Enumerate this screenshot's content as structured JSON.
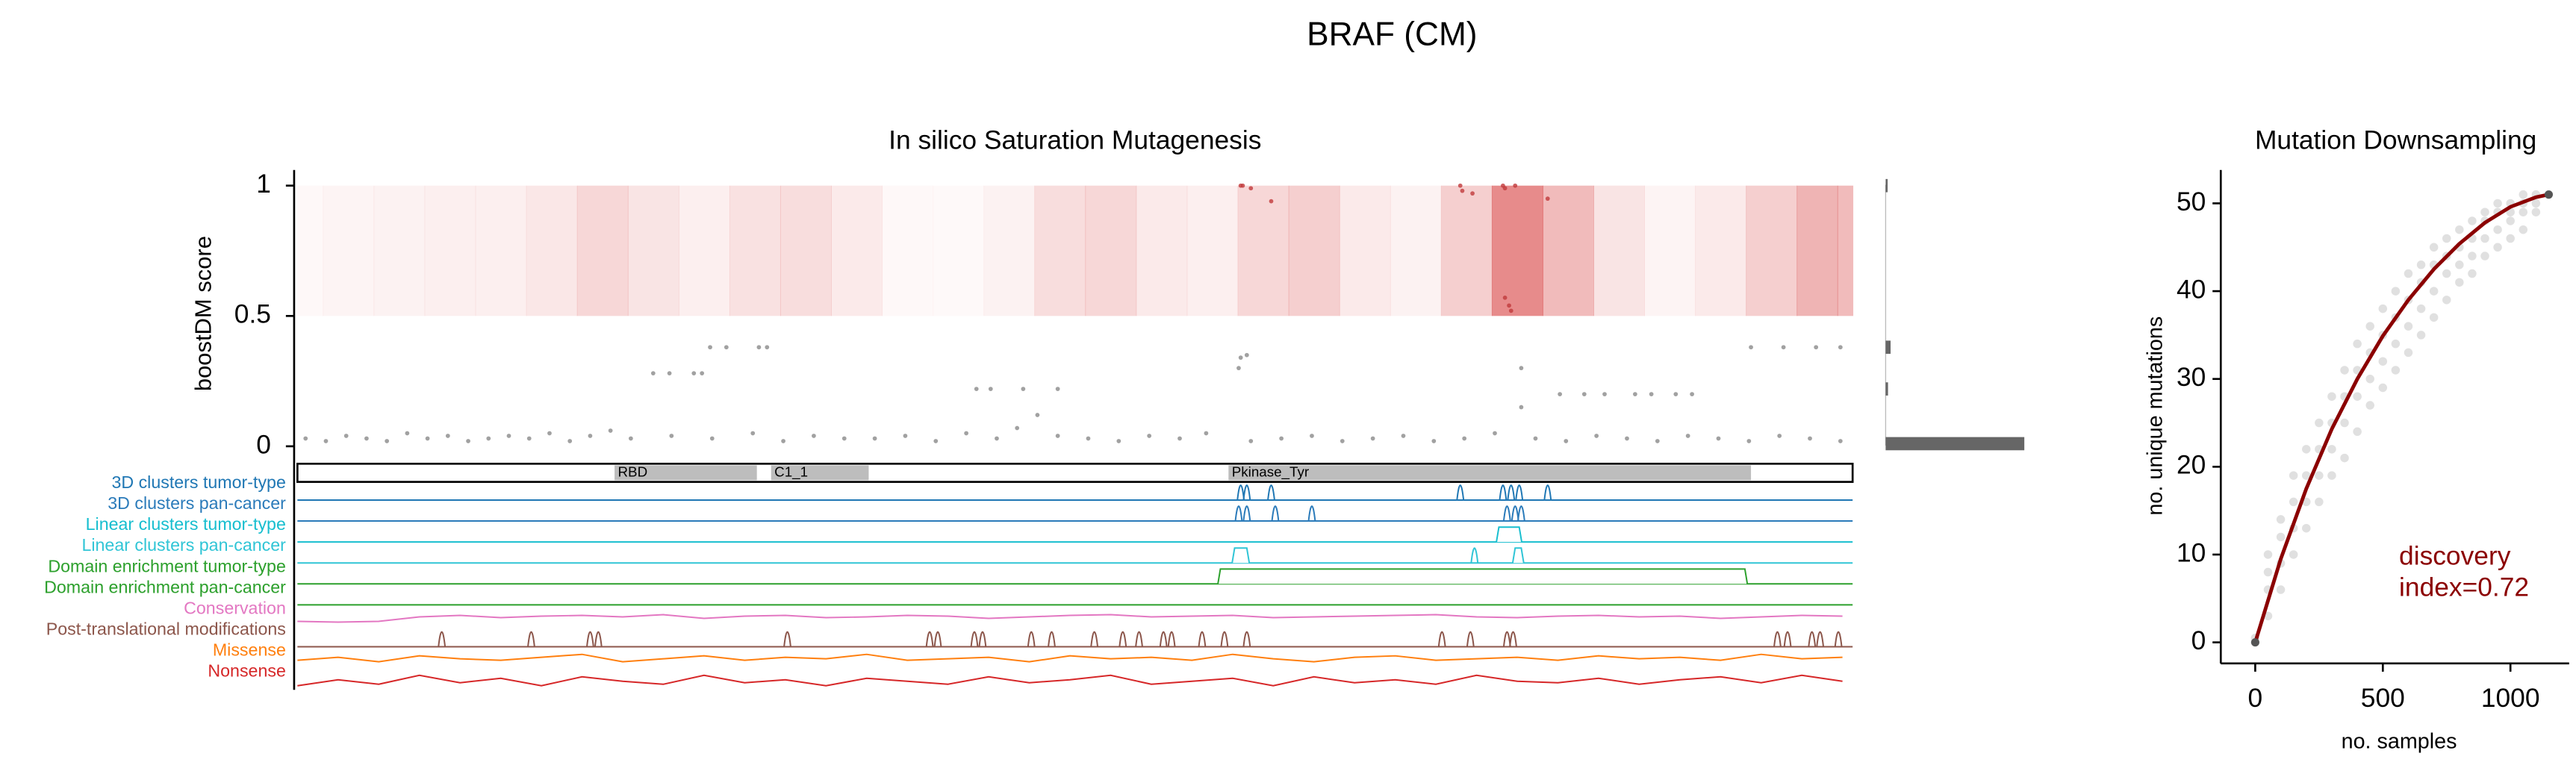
{
  "title": "BRAF (CM)",
  "chart_data": [
    {
      "type": "saturation",
      "title": "In silico Saturation Mutagenesis",
      "ylabel": "boostDM score",
      "xlim": [
        1,
        766
      ],
      "ylim": [
        -0.01,
        1.06
      ],
      "yticks": [
        0,
        0.5,
        1
      ],
      "threshold": 0.5,
      "point_color": "#8a8a8a",
      "hit_color": "#c0393b",
      "points": {
        "x": [
          5,
          15,
          25,
          35,
          45,
          55,
          65,
          75,
          85,
          95,
          105,
          115,
          125,
          135,
          145,
          155,
          165,
          185,
          205,
          225,
          240,
          255,
          270,
          285,
          300,
          315,
          330,
          345,
          355,
          365,
          375,
          390,
          405,
          420,
          435,
          448,
          470,
          485,
          500,
          515,
          530,
          545,
          560,
          575,
          590,
          610,
          625,
          640,
          655,
          670,
          685,
          700,
          715,
          730,
          745,
          760,
          176,
          184,
          196,
          200,
          204,
          212,
          228,
          232,
          335,
          342,
          358,
          375,
          464,
          465,
          468,
          603,
          603,
          622,
          634,
          644,
          659,
          667,
          679,
          687,
          716,
          732,
          748,
          760,
          465,
          466,
          470,
          480,
          573,
          574,
          579,
          594,
          595,
          600,
          616,
          595,
          597,
          598
        ],
        "y": [
          0.03,
          0.02,
          0.04,
          0.03,
          0.02,
          0.05,
          0.03,
          0.04,
          0.02,
          0.03,
          0.04,
          0.03,
          0.05,
          0.02,
          0.04,
          0.06,
          0.03,
          0.04,
          0.03,
          0.05,
          0.02,
          0.04,
          0.03,
          0.03,
          0.04,
          0.02,
          0.05,
          0.03,
          0.07,
          0.12,
          0.04,
          0.03,
          0.02,
          0.04,
          0.03,
          0.05,
          0.02,
          0.03,
          0.04,
          0.02,
          0.03,
          0.04,
          0.02,
          0.03,
          0.05,
          0.03,
          0.02,
          0.04,
          0.03,
          0.02,
          0.04,
          0.03,
          0.02,
          0.04,
          0.03,
          0.02,
          0.28,
          0.28,
          0.28,
          0.28,
          0.38,
          0.38,
          0.38,
          0.38,
          0.22,
          0.22,
          0.22,
          0.22,
          0.3,
          0.34,
          0.35,
          0.3,
          0.15,
          0.2,
          0.2,
          0.2,
          0.2,
          0.2,
          0.2,
          0.2,
          0.38,
          0.38,
          0.38,
          0.38,
          1.0,
          1.0,
          0.99,
          0.94,
          1.0,
          0.98,
          0.97,
          1.0,
          0.99,
          1.0,
          0.95,
          0.57,
          0.54,
          0.52
        ]
      },
      "heatmap": {
        "color": "#d94a4a",
        "positions": [
          1,
          26,
          51,
          76,
          101,
          126,
          151,
          176,
          201,
          226,
          251,
          276,
          301,
          326,
          351,
          376,
          401,
          426,
          451,
          476,
          501,
          526,
          551,
          576,
          601,
          626,
          651,
          676,
          701,
          726,
          751,
          766
        ],
        "values": [
          0.05,
          0.08,
          0.1,
          0.12,
          0.12,
          0.18,
          0.3,
          0.2,
          0.12,
          0.22,
          0.25,
          0.15,
          0.05,
          0.04,
          0.1,
          0.25,
          0.3,
          0.15,
          0.12,
          0.3,
          0.35,
          0.15,
          0.1,
          0.35,
          0.85,
          0.5,
          0.2,
          0.08,
          0.15,
          0.35,
          0.55,
          0.5
        ]
      },
      "marginal": {
        "color": "#666666",
        "y": [
          0.01,
          0.22,
          0.38,
          1.0
        ],
        "counts": [
          700,
          12,
          25,
          10
        ]
      },
      "domains": [
        {
          "name": "RBD",
          "start": 157,
          "end": 227
        },
        {
          "name": "C1_1",
          "start": 234,
          "end": 282
        },
        {
          "name": "Pkinase_Tyr",
          "start": 459,
          "end": 716
        }
      ],
      "tracks": [
        {
          "name": "3D clusters tumor-type",
          "color": "#1f77b4",
          "peaks": [
            465,
            468,
            480,
            573,
            594,
            598,
            602,
            616
          ]
        },
        {
          "name": "3D clusters pan-cancer",
          "color": "#2b7bba",
          "peaks": [
            464,
            468,
            482,
            500,
            596,
            600,
            603
          ]
        },
        {
          "name": "Linear clusters tumor-type",
          "color": "#17becf",
          "intervals": [
            [
              592,
              602
            ]
          ]
        },
        {
          "name": "Linear clusters pan-cancer",
          "color": "#30c5d6",
          "intervals": [
            [
              462,
              468
            ],
            [
              600,
              603
            ]
          ],
          "peaks": [
            580
          ]
        },
        {
          "name": "Domain enrichment tumor-type",
          "color": "#2ca02c",
          "intervals": [
            [
              455,
              713
            ]
          ]
        },
        {
          "name": "Domain enrichment pan-cancer",
          "color": "#2ca02c"
        },
        {
          "name": "Conservation",
          "color": "#e377c2",
          "positions": [
            1,
            21,
            41,
            61,
            81,
            101,
            121,
            141,
            161,
            181,
            201,
            221,
            241,
            261,
            281,
            301,
            321,
            341,
            361,
            381,
            401,
            421,
            441,
            461,
            481,
            501,
            521,
            541,
            561,
            581,
            601,
            621,
            641,
            661,
            681,
            701,
            721,
            741,
            761
          ],
          "values": [
            0.3,
            0.25,
            0.3,
            0.6,
            0.7,
            0.55,
            0.65,
            0.7,
            0.6,
            0.75,
            0.5,
            0.65,
            0.7,
            0.55,
            0.6,
            0.7,
            0.65,
            0.5,
            0.6,
            0.7,
            0.75,
            0.6,
            0.65,
            0.7,
            0.55,
            0.6,
            0.65,
            0.7,
            0.75,
            0.6,
            0.55,
            0.65,
            0.7,
            0.6,
            0.65,
            0.5,
            0.6,
            0.7,
            0.65
          ]
        },
        {
          "name": "Post-translational modifications",
          "color": "#8c564b",
          "peaks": [
            72,
            116,
            145,
            149,
            242,
            312,
            316,
            334,
            338,
            362,
            372,
            393,
            407,
            415,
            427,
            431,
            446,
            457,
            468,
            564,
            578,
            596,
            599,
            729,
            734,
            746,
            750,
            759
          ]
        },
        {
          "name": "Missense",
          "color": "#ff7f0e",
          "positions": [
            1,
            21,
            41,
            61,
            81,
            101,
            121,
            141,
            161,
            181,
            201,
            221,
            241,
            261,
            281,
            301,
            321,
            341,
            361,
            381,
            401,
            421,
            441,
            461,
            481,
            501,
            521,
            541,
            561,
            581,
            601,
            621,
            641,
            661,
            681,
            701,
            721,
            741,
            761
          ],
          "values": [
            0.5,
            0.7,
            0.4,
            0.8,
            0.6,
            0.5,
            0.7,
            0.9,
            0.4,
            0.6,
            0.8,
            0.5,
            0.7,
            0.6,
            0.9,
            0.5,
            0.6,
            0.7,
            0.4,
            0.8,
            0.6,
            0.7,
            0.5,
            0.9,
            0.6,
            0.4,
            0.7,
            0.8,
            0.5,
            0.6,
            0.7,
            0.5,
            0.8,
            0.6,
            0.7,
            0.5,
            0.9,
            0.6,
            0.7
          ]
        },
        {
          "name": "Nonsense",
          "color": "#d62728",
          "positions": [
            1,
            21,
            41,
            61,
            81,
            101,
            121,
            141,
            161,
            181,
            201,
            221,
            241,
            261,
            281,
            301,
            321,
            341,
            361,
            381,
            401,
            421,
            441,
            461,
            481,
            501,
            521,
            541,
            561,
            581,
            601,
            621,
            641,
            661,
            681,
            701,
            721,
            741,
            761
          ],
          "values": [
            0.2,
            0.6,
            0.3,
            0.9,
            0.4,
            0.7,
            0.2,
            0.8,
            0.5,
            0.3,
            0.9,
            0.4,
            0.6,
            0.2,
            0.7,
            0.5,
            0.3,
            0.8,
            0.4,
            0.6,
            0.9,
            0.3,
            0.5,
            0.7,
            0.2,
            0.8,
            0.4,
            0.6,
            0.3,
            0.9,
            0.5,
            0.4,
            0.7,
            0.3,
            0.6,
            0.8,
            0.4,
            0.9,
            0.5
          ]
        }
      ]
    },
    {
      "type": "downsampling",
      "title": "Mutation Downsampling",
      "xlabel": "no. samples",
      "ylabel": "no. unique mutations",
      "xlim": [
        -135,
        1230
      ],
      "ylim": [
        -2.4,
        53.8
      ],
      "xticks": [
        0,
        500,
        1000
      ],
      "yticks": [
        0,
        10,
        20,
        30,
        40,
        50
      ],
      "annotation": [
        "discovery",
        "index=0.72"
      ],
      "annotation_color": "#8b0000",
      "samples": {
        "color": "#555555",
        "x": [
          0,
          0,
          50,
          50,
          50,
          50,
          100,
          100,
          100,
          100,
          150,
          150,
          150,
          150,
          200,
          200,
          200,
          200,
          250,
          250,
          250,
          250,
          300,
          300,
          300,
          300,
          350,
          350,
          350,
          350,
          400,
          400,
          400,
          400,
          450,
          450,
          450,
          450,
          500,
          500,
          500,
          500,
          550,
          550,
          550,
          550,
          600,
          600,
          600,
          600,
          650,
          650,
          650,
          650,
          700,
          700,
          700,
          700,
          750,
          750,
          750,
          750,
          800,
          800,
          800,
          800,
          850,
          850,
          850,
          850,
          900,
          900,
          900,
          900,
          950,
          950,
          950,
          950,
          1000,
          1000,
          1000,
          1000,
          1050,
          1050,
          1050,
          1050,
          1100,
          1100,
          1100,
          1150
        ],
        "y": [
          0,
          0.5,
          3,
          6,
          8,
          10,
          6,
          9,
          12,
          14,
          10,
          13,
          16,
          19,
          13,
          16,
          19,
          22,
          16,
          19,
          22,
          25,
          19,
          22,
          25,
          28,
          21,
          25,
          28,
          31,
          24,
          28,
          31,
          34,
          27,
          30,
          33,
          36,
          29,
          32,
          35,
          38,
          31,
          34,
          37,
          40,
          33,
          36,
          39,
          42,
          35,
          38,
          41,
          43,
          37,
          40,
          43,
          45,
          39,
          42,
          44,
          46,
          41,
          43,
          45,
          47,
          42,
          44,
          46,
          48,
          44,
          46,
          48,
          49,
          45,
          47,
          49,
          50,
          46,
          48,
          49,
          50,
          47,
          49,
          50,
          51,
          49,
          50,
          51,
          51
        ]
      },
      "curve": {
        "color": "#8b0000",
        "x": [
          0,
          100,
          200,
          300,
          400,
          500,
          600,
          700,
          800,
          900,
          1000,
          1100,
          1150
        ],
        "y": [
          0,
          9.5,
          17.5,
          24.3,
          30,
          34.9,
          39,
          42.5,
          45.4,
          47.8,
          49.6,
          50.7,
          51
        ]
      }
    }
  ]
}
